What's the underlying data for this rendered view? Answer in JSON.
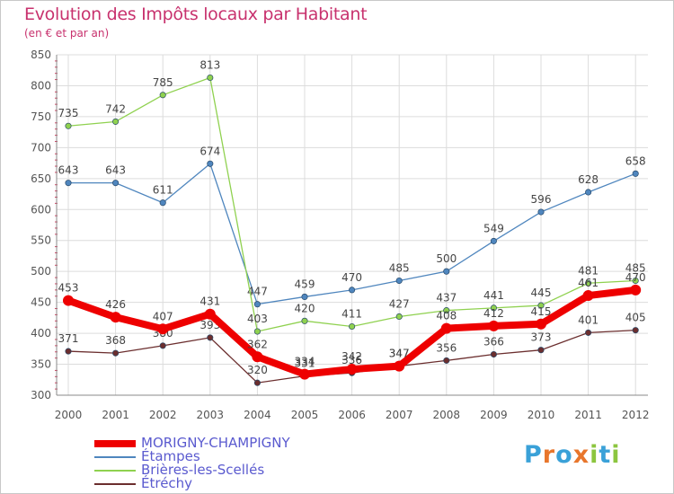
{
  "title": "Evolution des Impôts locaux par Habitant",
  "subtitle": "(en € et par an)",
  "logo": {
    "text": "Proxiti",
    "letters": [
      "P",
      "r",
      "o",
      "x",
      "i",
      "t",
      "i"
    ],
    "colors": [
      "#3aa1d8",
      "#e8762c",
      "#3aa1d8",
      "#e8762c",
      "#8cc63f",
      "#3aa1d8",
      "#8cc63f"
    ]
  },
  "chart_data": {
    "type": "line",
    "x": [
      "2000",
      "2001",
      "2002",
      "2003",
      "2004",
      "2005",
      "2006",
      "2007",
      "2008",
      "2009",
      "2010",
      "2011",
      "2012"
    ],
    "ylim": [
      300,
      850
    ],
    "yticks": [
      300,
      350,
      400,
      450,
      500,
      550,
      600,
      650,
      700,
      750,
      800,
      850
    ],
    "grid": true,
    "legend_position": "bottom-left",
    "series": [
      {
        "name": "Étampes",
        "color": "#4f86be",
        "values": [
          643,
          643,
          611,
          674,
          447,
          459,
          470,
          485,
          500,
          549,
          596,
          628,
          658
        ]
      },
      {
        "name": "Brières-les-Scellés",
        "color": "#8fd14f",
        "values": [
          735,
          742,
          785,
          813,
          403,
          420,
          411,
          427,
          437,
          441,
          445,
          481,
          485
        ]
      },
      {
        "name": "Étréchy",
        "color": "#6b2e2e",
        "values": [
          371,
          368,
          380,
          393,
          320,
          331,
          336,
          347,
          356,
          366,
          373,
          401,
          405
        ]
      },
      {
        "name": "MORIGNY-CHAMPIGNY",
        "color": "#ee0000",
        "bold": true,
        "values": [
          453,
          426,
          407,
          431,
          362,
          334,
          342,
          347,
          408,
          412,
          415,
          461,
          470
        ]
      }
    ],
    "legend_order": [
      "MORIGNY-CHAMPIGNY",
      "Étampes",
      "Brières-les-Scellés",
      "Étréchy"
    ]
  }
}
